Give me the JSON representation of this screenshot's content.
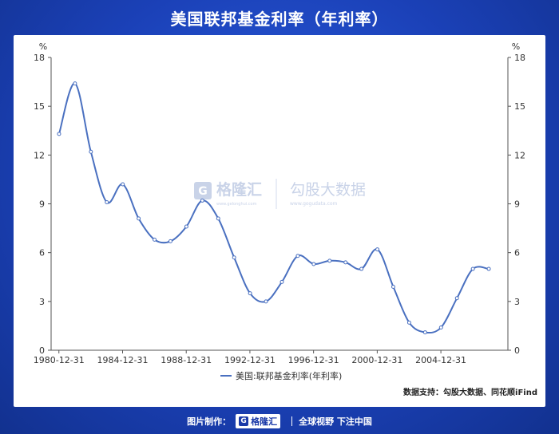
{
  "title": "美国联邦基金利率（年利率）",
  "chart_data": {
    "type": "line",
    "y_unit_left": "%",
    "y_unit_right": "%",
    "ylim": [
      0,
      18
    ],
    "yticks": [
      0,
      3,
      6,
      9,
      12,
      15,
      18
    ],
    "xlim": [
      1980.5,
      2009.2
    ],
    "xticks": [
      {
        "label": "1980-12-31",
        "x": 1980.99
      },
      {
        "label": "1984-12-31",
        "x": 1984.99
      },
      {
        "label": "1988-12-31",
        "x": 1988.99
      },
      {
        "label": "1992-12-31",
        "x": 1992.99
      },
      {
        "label": "1996-12-31",
        "x": 1996.99
      },
      {
        "label": "2000-12-31",
        "x": 2000.99
      },
      {
        "label": "2004-12-31",
        "x": 2004.99
      }
    ],
    "series": [
      {
        "name": "美国:联邦基金利率(年利率)",
        "color": "#4a70c0",
        "x": [
          1981.0,
          1982.0,
          1983.0,
          1984.0,
          1985.0,
          1986.0,
          1987.0,
          1988.0,
          1989.0,
          1990.0,
          1991.0,
          1992.0,
          1993.0,
          1994.0,
          1995.0,
          1996.0,
          1997.0,
          1998.0,
          1999.0,
          2000.0,
          2001.0,
          2002.0,
          2003.0,
          2004.0,
          2005.0,
          2006.0,
          2007.0,
          2008.0
        ],
        "y": [
          13.3,
          16.4,
          12.2,
          9.1,
          10.2,
          8.1,
          6.8,
          6.7,
          7.6,
          9.2,
          8.1,
          5.7,
          3.5,
          3.0,
          4.2,
          5.8,
          5.3,
          5.5,
          5.4,
          5.0,
          6.2,
          3.9,
          1.7,
          1.1,
          1.4,
          3.2,
          5.0,
          5.0
        ]
      }
    ],
    "legend_position": "bottom-center",
    "grid": false
  },
  "watermark": {
    "brand": "格隆汇",
    "brand_sub": "www.gelonghui.com",
    "brand2": "勾股大数据",
    "brand2_sub": "www.gogudata.com"
  },
  "source_text": "数据支持：勾股大数据、同花顺iFind",
  "footer": {
    "made_by": "图片制作：",
    "logo_text": "格隆汇",
    "slogan": "全球视野 下注中国"
  }
}
